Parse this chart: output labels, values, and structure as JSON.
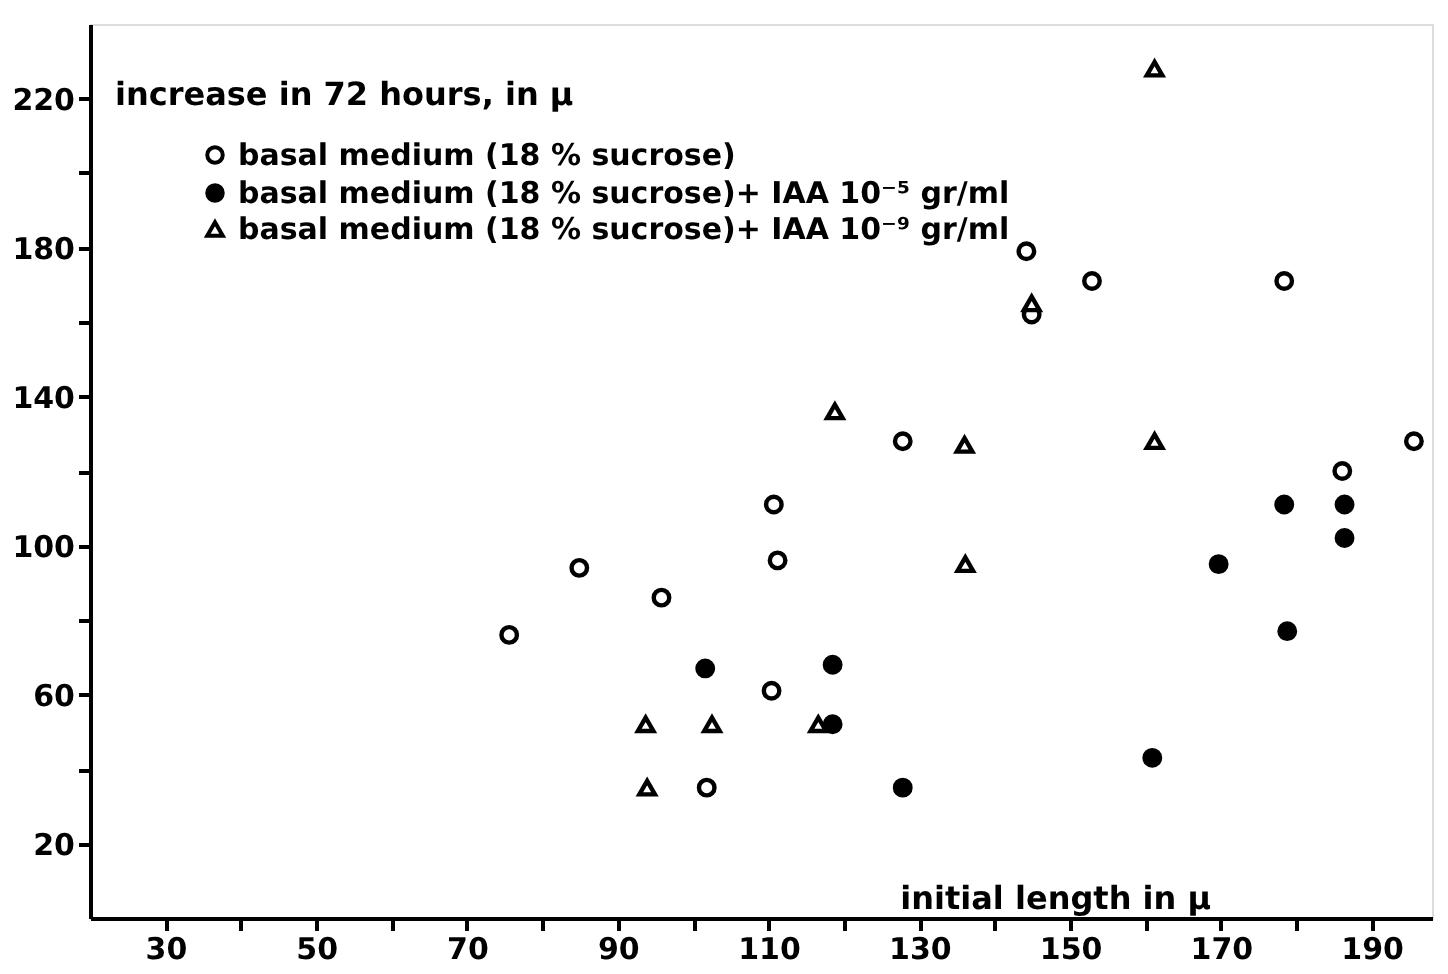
{
  "chart_data": {
    "type": "scatter",
    "xlabel": "initial length in μ",
    "ylabel": "increase in 72 hours, in μ",
    "xlim": [
      20,
      198
    ],
    "ylim": [
      0,
      240
    ],
    "xticks": [
      30,
      {
        "value": 40,
        "label": null
      },
      50,
      {
        "value": 60,
        "label": null
      },
      70,
      {
        "value": 80,
        "label": null
      },
      90,
      {
        "value": 100,
        "label": null
      },
      110,
      {
        "value": 120,
        "label": null
      },
      130,
      {
        "value": 140,
        "label": null
      },
      150,
      {
        "value": 160,
        "label": null
      },
      170,
      {
        "value": 180,
        "label": null
      },
      190
    ],
    "yticks": [
      20,
      {
        "value": 40,
        "label": null
      },
      60,
      {
        "value": 80,
        "label": null
      },
      100,
      {
        "value": 120,
        "label": null
      },
      140,
      {
        "value": 160,
        "label": null
      },
      180,
      {
        "value": 200,
        "label": null
      },
      220
    ],
    "grid": false,
    "legend": "top left",
    "series": [
      {
        "name": "basal medium (18 % sucrose)",
        "color": "#000000",
        "marker": "circle",
        "x": [
          75.6,
          84.9,
          95.8,
          110.7,
          111.2,
          110.4,
          101.8,
          127.8,
          144.2,
          144.9,
          152.9,
          178.4,
          186.1,
          195.6
        ],
        "values": [
          76,
          94,
          86,
          111,
          96,
          61,
          35,
          128,
          179,
          162,
          171,
          171,
          120,
          128
        ]
      },
      {
        "name": "basal medium (18 % sucrose)+ IAA 10⁻⁵ gr/ml",
        "color": "#000000",
        "marker": "circle",
        "x": [
          101.6,
          118.5,
          118.5,
          127.8,
          160.9,
          169.7,
          178.4,
          178.8,
          186.4,
          186.4
        ],
        "values": [
          67,
          68,
          52,
          35,
          43,
          95,
          111,
          77,
          111,
          102
        ]
      },
      {
        "name": "basal medium (18 % sucrose)+ IAA 10⁻⁹ gr/ml",
        "color": "#000000",
        "marker": "triangle",
        "x": [
          161.2,
          118.8,
          136.0,
          136.1,
          144.9,
          161.2,
          93.7,
          102.5,
          93.9,
          116.6
        ],
        "values": [
          228,
          136,
          127,
          95,
          165,
          128,
          52,
          52,
          35,
          52
        ]
      }
    ]
  }
}
